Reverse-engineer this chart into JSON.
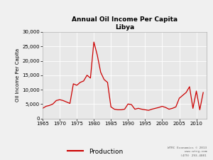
{
  "title_line1": "Annual Oil Income Per Capita",
  "title_line2": "Libya",
  "ylabel": "Oil Income Per Capita",
  "line_color": "#cc0000",
  "line_label": "Production",
  "plot_bg_color": "#e8e8e8",
  "fig_bg_color": "#f0f0f0",
  "grid_color": "#ffffff",
  "ylim": [
    0,
    30000
  ],
  "xlim": [
    1965,
    2013
  ],
  "yticks": [
    0,
    5000,
    10000,
    15000,
    20000,
    25000,
    30000
  ],
  "xticks": [
    1965,
    1970,
    1975,
    1980,
    1985,
    1990,
    1995,
    2000,
    2005,
    2010
  ],
  "watermark_line1": "WTRC Economics © 2013",
  "watermark_line2": "www.wtrg.com",
  "watermark_line3": "(479) 293-4081",
  "years": [
    1965,
    1966,
    1967,
    1968,
    1969,
    1970,
    1971,
    1972,
    1973,
    1974,
    1975,
    1976,
    1977,
    1978,
    1979,
    1980,
    1981,
    1982,
    1983,
    1984,
    1985,
    1986,
    1987,
    1988,
    1989,
    1990,
    1991,
    1992,
    1993,
    1994,
    1995,
    1996,
    1997,
    1998,
    1999,
    2000,
    2001,
    2002,
    2003,
    2004,
    2005,
    2006,
    2007,
    2008,
    2009,
    2010,
    2011,
    2012
  ],
  "values": [
    3500,
    4200,
    4500,
    5000,
    6200,
    6500,
    6200,
    5700,
    5200,
    12000,
    11500,
    12500,
    13000,
    15000,
    14000,
    26500,
    22000,
    16000,
    13500,
    12500,
    4000,
    3200,
    3000,
    3000,
    3200,
    5000,
    4800,
    3200,
    3500,
    3200,
    3000,
    2800,
    3200,
    3500,
    3800,
    4200,
    3800,
    3200,
    3500,
    4000,
    7000,
    8000,
    9000,
    11000,
    3500,
    9500,
    3000,
    9000
  ]
}
